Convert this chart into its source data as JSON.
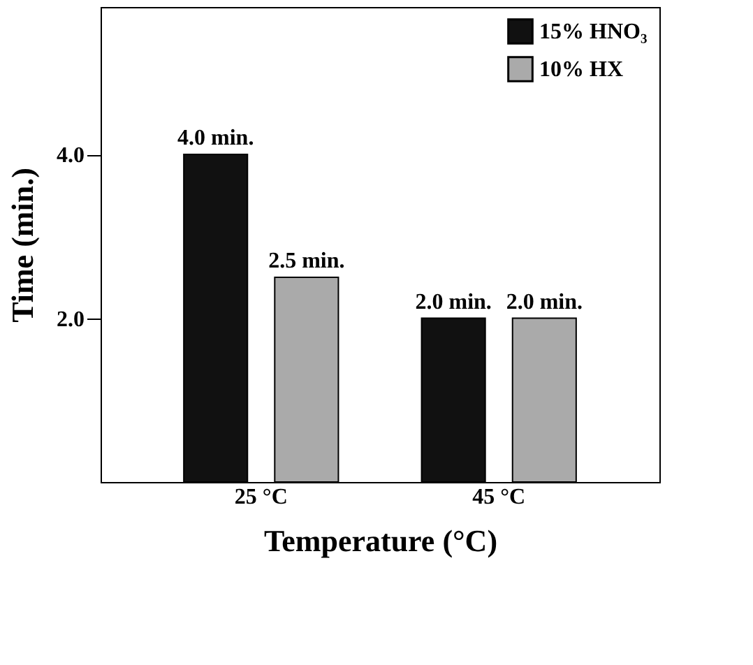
{
  "chart_data": {
    "type": "bar",
    "xlabel": "Temperature (°C)",
    "ylabel": "Time (min.)",
    "categories": [
      "25 °C",
      "45 °C"
    ],
    "series": [
      {
        "name": "15% HNO₃",
        "color": "#111111",
        "values": [
          4.0,
          2.0
        ],
        "value_labels": [
          "4.0 min.",
          "2.0 min."
        ]
      },
      {
        "name": "10% HX",
        "color": "#aaaaaa",
        "values": [
          2.5,
          2.0
        ],
        "value_labels": [
          "2.5 min.",
          "2.0 min."
        ]
      }
    ],
    "ylim": [
      0,
      5.8
    ],
    "yticks": [
      {
        "value": 2,
        "label": "2.0"
      },
      {
        "value": 4,
        "label": "4.0"
      }
    ],
    "legend": "top right",
    "grid": false
  }
}
